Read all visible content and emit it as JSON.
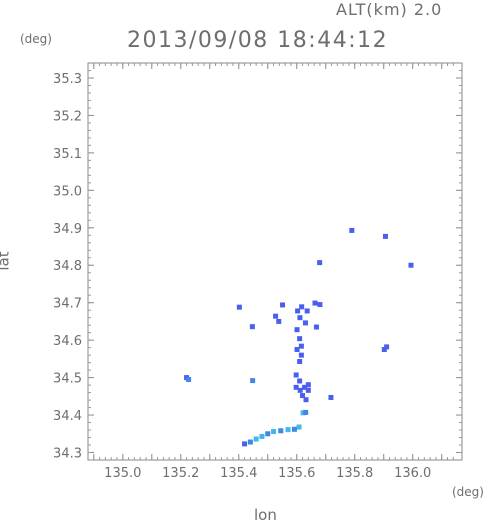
{
  "header": {
    "altitude_label": "ALT(km) 2.0",
    "timestamp": "2013/09/08 18:44:12"
  },
  "chart_data": {
    "type": "scatter",
    "title": "2013/09/08 18:44:12",
    "subtitle": "ALT(km) 2.0",
    "xlabel": "lon",
    "ylabel": "lat",
    "x_unit": "(deg)",
    "y_unit": "(deg)",
    "xlim": [
      134.88,
      136.17
    ],
    "ylim": [
      34.28,
      35.34
    ],
    "xticks": [
      "135.0",
      "135.2",
      "135.4",
      "135.6",
      "135.8",
      "136.0"
    ],
    "yticks": [
      "34.3",
      "34.4",
      "34.5",
      "34.6",
      "34.7",
      "34.8",
      "34.9",
      "35.0",
      "35.1",
      "35.2",
      "35.3"
    ],
    "grid": false,
    "colors": {
      "echo_main": "#4a5ff0",
      "echo_light": "#3fb8ee",
      "echo_mid": "#3d86ea",
      "frame": "#8a8a8a"
    },
    "points": [
      {
        "x": 135.79,
        "y": 34.893,
        "c": "echo_main"
      },
      {
        "x": 135.906,
        "y": 34.877,
        "c": "echo_main"
      },
      {
        "x": 135.994,
        "y": 34.8,
        "c": "echo_main"
      },
      {
        "x": 135.679,
        "y": 34.807,
        "c": "echo_main"
      },
      {
        "x": 135.402,
        "y": 34.688,
        "c": "echo_main"
      },
      {
        "x": 135.447,
        "y": 34.636,
        "c": "echo_main"
      },
      {
        "x": 135.527,
        "y": 34.664,
        "c": "echo_main"
      },
      {
        "x": 135.538,
        "y": 34.65,
        "c": "echo_main"
      },
      {
        "x": 135.551,
        "y": 34.694,
        "c": "echo_main"
      },
      {
        "x": 135.603,
        "y": 34.678,
        "c": "echo_main"
      },
      {
        "x": 135.617,
        "y": 34.689,
        "c": "echo_main"
      },
      {
        "x": 135.636,
        "y": 34.678,
        "c": "echo_main"
      },
      {
        "x": 135.663,
        "y": 34.699,
        "c": "echo_main"
      },
      {
        "x": 135.68,
        "y": 34.695,
        "c": "echo_main"
      },
      {
        "x": 135.611,
        "y": 34.66,
        "c": "echo_main"
      },
      {
        "x": 135.63,
        "y": 34.646,
        "c": "echo_main"
      },
      {
        "x": 135.668,
        "y": 34.635,
        "c": "echo_main"
      },
      {
        "x": 135.601,
        "y": 34.628,
        "c": "echo_main"
      },
      {
        "x": 135.61,
        "y": 34.604,
        "c": "echo_main"
      },
      {
        "x": 135.616,
        "y": 34.584,
        "c": "echo_main"
      },
      {
        "x": 135.601,
        "y": 34.575,
        "c": "echo_main"
      },
      {
        "x": 135.616,
        "y": 34.56,
        "c": "echo_main"
      },
      {
        "x": 135.61,
        "y": 34.543,
        "c": "echo_main"
      },
      {
        "x": 135.598,
        "y": 34.507,
        "c": "echo_main"
      },
      {
        "x": 135.61,
        "y": 34.491,
        "c": "echo_main"
      },
      {
        "x": 135.598,
        "y": 34.474,
        "c": "echo_main"
      },
      {
        "x": 135.612,
        "y": 34.466,
        "c": "echo_main"
      },
      {
        "x": 135.627,
        "y": 34.474,
        "c": "echo_main"
      },
      {
        "x": 135.64,
        "y": 34.466,
        "c": "echo_main"
      },
      {
        "x": 135.64,
        "y": 34.481,
        "c": "echo_main"
      },
      {
        "x": 135.62,
        "y": 34.452,
        "c": "echo_main"
      },
      {
        "x": 135.632,
        "y": 34.441,
        "c": "echo_main"
      },
      {
        "x": 135.718,
        "y": 34.447,
        "c": "echo_main"
      },
      {
        "x": 135.91,
        "y": 34.582,
        "c": "echo_main"
      },
      {
        "x": 135.902,
        "y": 34.575,
        "c": "echo_main"
      },
      {
        "x": 135.22,
        "y": 34.5,
        "c": "echo_main"
      },
      {
        "x": 135.227,
        "y": 34.495,
        "c": "echo_mid"
      },
      {
        "x": 135.448,
        "y": 34.492,
        "c": "echo_mid"
      },
      {
        "x": 135.622,
        "y": 34.406,
        "c": "echo_light"
      },
      {
        "x": 135.631,
        "y": 34.407,
        "c": "echo_mid"
      },
      {
        "x": 135.608,
        "y": 34.368,
        "c": "echo_light"
      },
      {
        "x": 135.592,
        "y": 34.362,
        "c": "echo_mid"
      },
      {
        "x": 135.57,
        "y": 34.361,
        "c": "echo_light"
      },
      {
        "x": 135.545,
        "y": 34.358,
        "c": "echo_mid"
      },
      {
        "x": 135.52,
        "y": 34.356,
        "c": "echo_light"
      },
      {
        "x": 135.5,
        "y": 34.35,
        "c": "echo_mid"
      },
      {
        "x": 135.48,
        "y": 34.343,
        "c": "echo_light"
      },
      {
        "x": 135.46,
        "y": 34.336,
        "c": "echo_light"
      },
      {
        "x": 135.44,
        "y": 34.328,
        "c": "echo_mid"
      },
      {
        "x": 135.42,
        "y": 34.323,
        "c": "echo_main"
      }
    ]
  }
}
